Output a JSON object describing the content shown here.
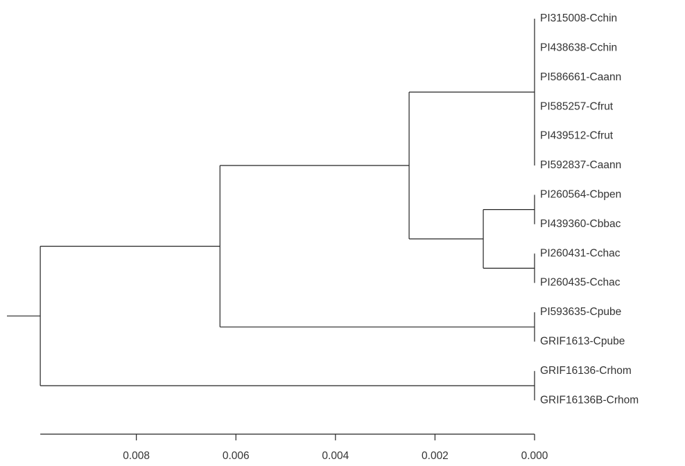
{
  "chart_data": {
    "type": "dendrogram",
    "xlim": [
      0.0106,
      0
    ],
    "xticks": [
      0.008,
      0.006,
      0.004,
      0.002,
      {
        "value": 0,
        "label": "0.000"
      }
    ],
    "color": "#222222",
    "tree": {
      "height": 0.00993,
      "children": [
        {
          "height": 0.00632,
          "children": [
            {
              "height": 0.00252,
              "children": [
                {
                  "height": 0,
                  "children": [
                    {
                      "label": "PI315008-Cchin"
                    },
                    {
                      "label": "PI438638-Cchin"
                    },
                    {
                      "label": "PI586661-Caann"
                    },
                    {
                      "label": "PI585257-Cfrut"
                    },
                    {
                      "label": "PI439512-Cfrut"
                    },
                    {
                      "label": "PI592837-Caann"
                    }
                  ]
                },
                {
                  "height": 0.00103,
                  "children": [
                    {
                      "height": 0,
                      "children": [
                        {
                          "label": "PI260564-Cbpen"
                        },
                        {
                          "label": "PI439360-Cbbac"
                        }
                      ]
                    },
                    {
                      "height": 0,
                      "children": [
                        {
                          "label": "PI260431-Cchac"
                        },
                        {
                          "label": "PI260435-Cchac"
                        }
                      ]
                    }
                  ]
                }
              ]
            },
            {
              "height": 0,
              "children": [
                {
                  "label": "PI593635-Cpube"
                },
                {
                  "label": "GRIF1613-Cpube"
                }
              ]
            }
          ]
        },
        {
          "height": 0,
          "children": [
            {
              "label": "GRIF16136-Crhom"
            },
            {
              "label": "GRIF16136B-Crhom"
            }
          ]
        }
      ]
    }
  }
}
